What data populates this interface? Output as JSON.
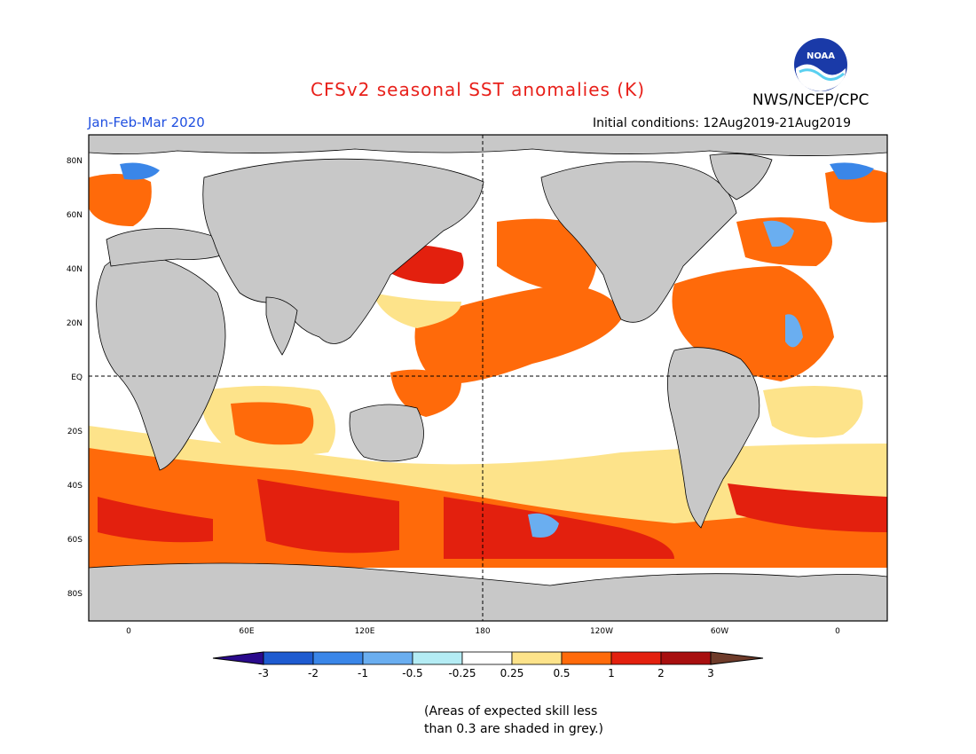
{
  "title": "CFSv2 seasonal SST anomalies (K)",
  "agency": "NWS/NCEP/CPC",
  "period": "Jan-Feb-Mar 2020",
  "initial_conditions": "Initial conditions: 12Aug2019-21Aug2019",
  "note_line1": "(Areas of expected skill less",
  "note_line2": "than 0.3 are shaded in grey.)",
  "logo_text": "NOAA",
  "lon_ticks": [
    "0",
    "60E",
    "120E",
    "180",
    "120W",
    "60W",
    "0"
  ],
  "lat_ticks": [
    "80N",
    "60N",
    "40N",
    "20N",
    "EQ",
    "20S",
    "40S",
    "60S",
    "80S"
  ],
  "colorbar": {
    "labels": [
      "-3",
      "-2",
      "-1",
      "-0.5",
      "-0.25",
      "0.25",
      "0.5",
      "1",
      "2",
      "3"
    ],
    "colors": [
      "#2a0a8c",
      "#1e5bd0",
      "#3a86e8",
      "#6aaef0",
      "#b4ecf4",
      "#ffffff",
      "#fde38a",
      "#ff6a0a",
      "#e3200e",
      "#a80f0f",
      "#6e3b2a"
    ]
  }
}
